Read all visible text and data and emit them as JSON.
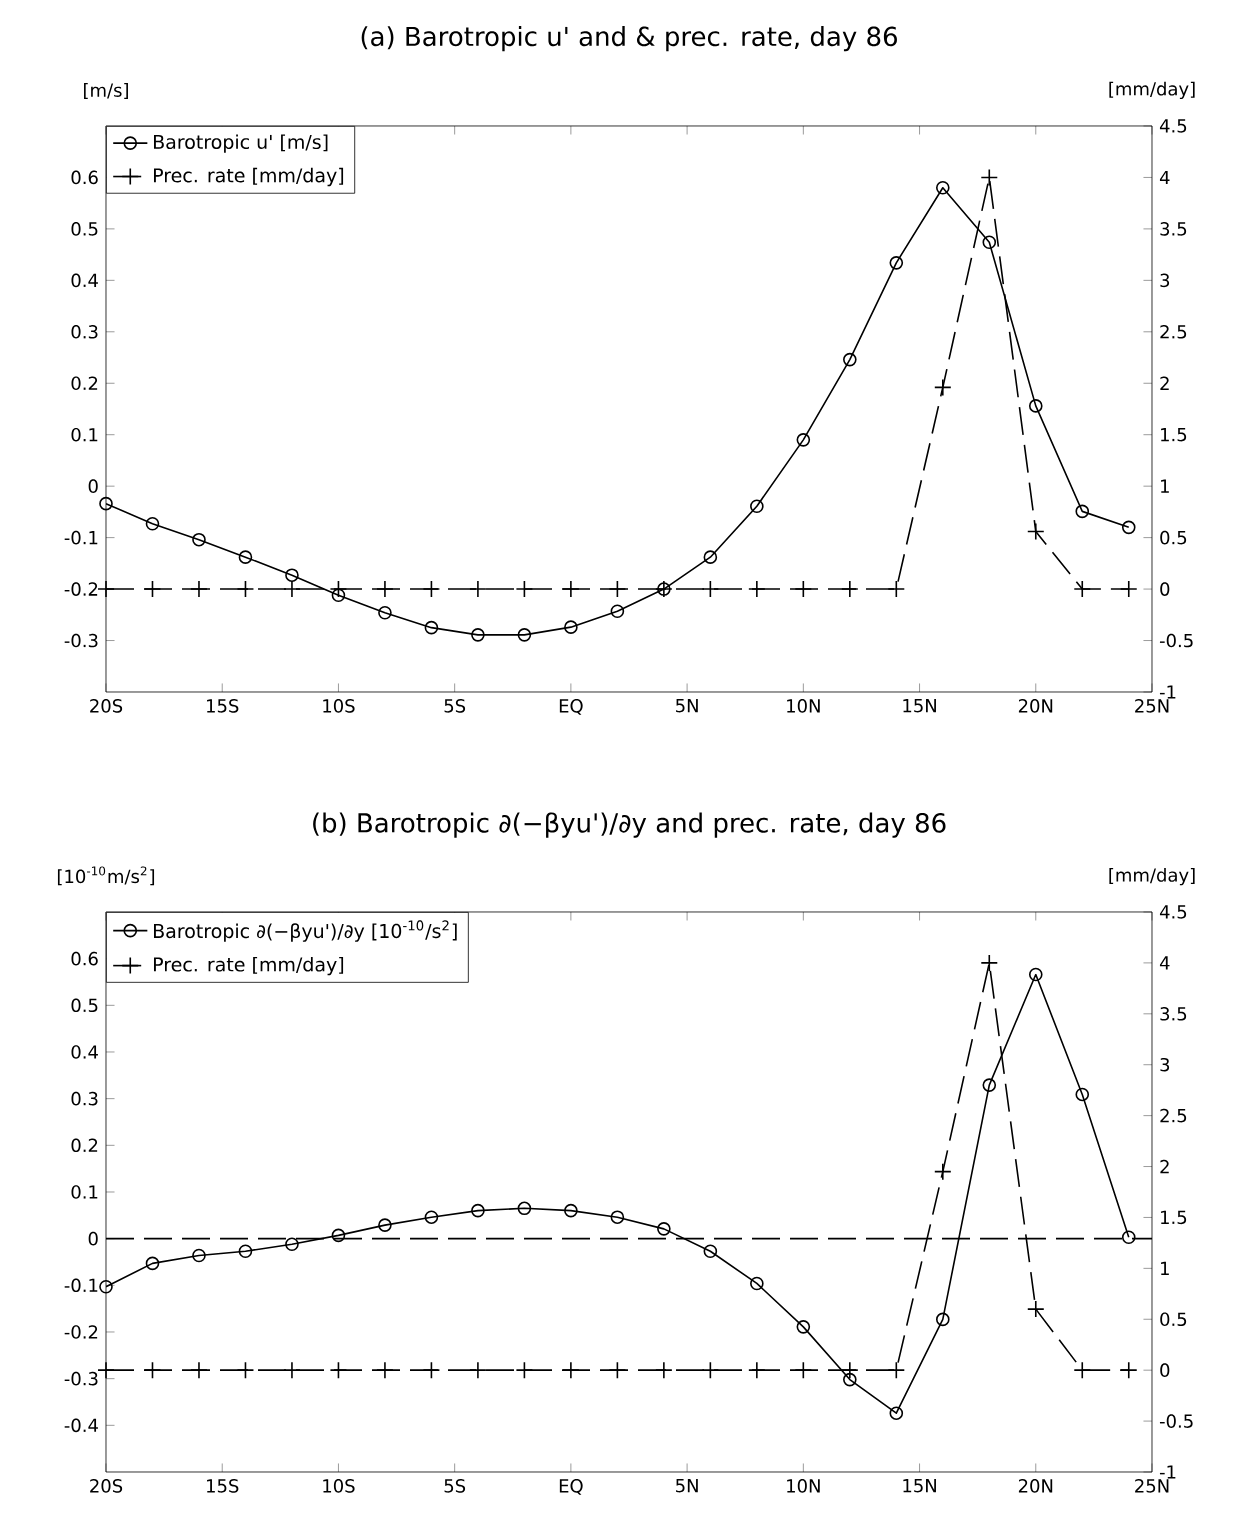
{
  "chart_data": [
    {
      "type": "line",
      "title": "(a) Barotropic u' and & prec. rate, day 86",
      "ylabel": "[m/s]",
      "y2label": "[mm/day]",
      "x": [
        -20,
        -18,
        -16,
        -14,
        -12,
        -10,
        -8,
        -6,
        -4,
        -2,
        0,
        2,
        4,
        6,
        8,
        10,
        12,
        14,
        16,
        18,
        20,
        22,
        24
      ],
      "xlim": [
        -20,
        25
      ],
      "xticks": [
        {
          "value": -20,
          "label": "20S"
        },
        {
          "value": -15,
          "label": "15S"
        },
        {
          "value": -10,
          "label": "10S"
        },
        {
          "value": -5,
          "label": "5S"
        },
        {
          "value": 0,
          "label": "EQ"
        },
        {
          "value": 5,
          "label": "5N"
        },
        {
          "value": 10,
          "label": "10N"
        },
        {
          "value": 15,
          "label": "15N"
        },
        {
          "value": 20,
          "label": "20N"
        },
        {
          "value": 25,
          "label": "25N"
        }
      ],
      "ylim": [
        -0.4,
        0.7
      ],
      "yticks": [
        -0.3,
        -0.2,
        -0.1,
        0,
        0.1,
        0.2,
        0.3,
        0.4,
        0.5,
        0.6
      ],
      "y2lim": [
        -1,
        4.5
      ],
      "y2ticks": [
        -1,
        -0.5,
        0,
        0.5,
        1,
        1.5,
        2,
        2.5,
        3,
        3.5,
        4,
        4.5
      ],
      "legend": "top left",
      "series": [
        {
          "name": "Barotropic u' [m/s]",
          "color": "#000000",
          "marker": "circle",
          "line_style": "solid",
          "values": [
            -0.034,
            -0.073,
            -0.104,
            -0.138,
            -0.173,
            -0.212,
            -0.246,
            -0.275,
            -0.289,
            -0.289,
            -0.274,
            -0.243,
            -0.2,
            -0.138,
            -0.039,
            0.09,
            0.246,
            0.434,
            0.58,
            0.474,
            0.156,
            -0.049,
            -0.08
          ]
        },
        {
          "name": "Prec. rate [mm/day]",
          "color": "#000000",
          "marker": "cross",
          "line_style": "dashed",
          "axis": "y2",
          "values": [
            0,
            0,
            0,
            0,
            0,
            0,
            0,
            0,
            0,
            0,
            0,
            0,
            0,
            0,
            0,
            0,
            0,
            0,
            1.96,
            4.0,
            0.56,
            0,
            0
          ]
        }
      ]
    },
    {
      "type": "line",
      "title": "(b) Barotropic ∂(−βyu')/∂y and prec. rate, day 86",
      "ylabel": "[10$^{-10}$m/s$^{2}$]",
      "y2label": "[mm/day]",
      "x": [
        -20,
        -18,
        -16,
        -14,
        -12,
        -10,
        -8,
        -6,
        -4,
        -2,
        0,
        2,
        4,
        6,
        8,
        10,
        12,
        14,
        16,
        18,
        20,
        22,
        24
      ],
      "xlim": [
        -20,
        25
      ],
      "xticks": [
        {
          "value": -20,
          "label": "20S"
        },
        {
          "value": -15,
          "label": "15S"
        },
        {
          "value": -10,
          "label": "10S"
        },
        {
          "value": -5,
          "label": "5S"
        },
        {
          "value": 0,
          "label": "EQ"
        },
        {
          "value": 5,
          "label": "5N"
        },
        {
          "value": 10,
          "label": "10N"
        },
        {
          "value": 15,
          "label": "15N"
        },
        {
          "value": 20,
          "label": "20N"
        },
        {
          "value": 25,
          "label": "25N"
        }
      ],
      "ylim": [
        -0.5,
        0.7
      ],
      "yticks": [
        -0.4,
        -0.3,
        -0.2,
        -0.1,
        0,
        0.1,
        0.2,
        0.3,
        0.4,
        0.5,
        0.6
      ],
      "y2lim": [
        -1,
        4.5
      ],
      "y2ticks": [
        -1,
        -0.5,
        0,
        0.5,
        1,
        1.5,
        2,
        2.5,
        3,
        3.5,
        4,
        4.5
      ],
      "legend": "top left",
      "ref_lines": [
        {
          "axis": "y",
          "value": 0,
          "color": "#000000",
          "line_style": "dashed"
        }
      ],
      "series": [
        {
          "name": "Barotropic ∂(−βyu')/∂y [10$^{-10}$/s$^{2}$]",
          "color": "#000000",
          "marker": "circle",
          "line_style": "solid",
          "values": [
            -0.103,
            -0.053,
            -0.036,
            -0.027,
            -0.012,
            0.007,
            0.029,
            0.046,
            0.06,
            0.065,
            0.06,
            0.046,
            0.021,
            -0.027,
            -0.096,
            -0.189,
            -0.302,
            -0.374,
            -0.173,
            0.329,
            0.566,
            0.309,
            0.003
          ]
        },
        {
          "name": "Prec. rate [mm/day]",
          "color": "#000000",
          "marker": "cross",
          "line_style": "dashed",
          "axis": "y2",
          "values": [
            0,
            0,
            0,
            0,
            0,
            0,
            0,
            0,
            0,
            0,
            0,
            0,
            0,
            0,
            0,
            0,
            0,
            0,
            1.95,
            4.0,
            0.6,
            0,
            0
          ]
        }
      ]
    }
  ]
}
